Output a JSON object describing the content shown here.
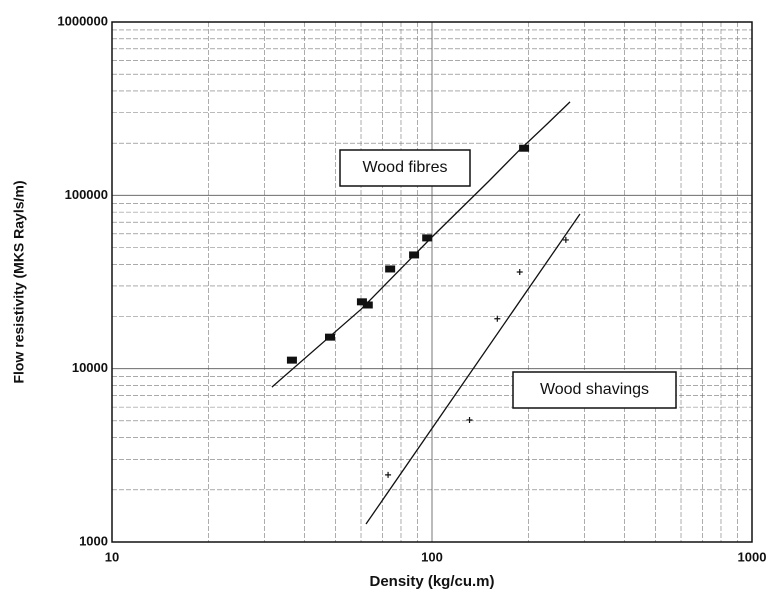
{
  "chart_data": {
    "type": "scatter",
    "xlabel": "Density (kg/cu.m)",
    "ylabel": "Flow resistivity (MKS Rayls/m)",
    "xscale": "log",
    "yscale": "log",
    "xlim": [
      10,
      1000
    ],
    "ylim": [
      1000,
      1000000
    ],
    "xticks": [
      10,
      100,
      1000
    ],
    "yticks": [
      1000,
      10000,
      100000,
      1000000
    ],
    "grid": true,
    "minor_grid": true,
    "series": [
      {
        "name": "Wood fibres",
        "marker": "square",
        "color": "#111111",
        "x": [
          36.5,
          48,
          60.4,
          63,
          74,
          87.9,
          96.6,
          194
        ],
        "values": [
          11200,
          15200,
          24300,
          23300,
          37600,
          45300,
          56800,
          187000
        ],
        "fit_x": [
          31.6,
          60,
          100,
          150,
          188,
          230,
          270
        ],
        "fit_values": [
          7830,
          22000,
          57500,
          120000,
          183000,
          260000,
          346000
        ]
      },
      {
        "name": "Wood shavings",
        "marker": "cross",
        "color": "#111111",
        "x": [
          72.9,
          131,
          160,
          188,
          262
        ],
        "values": [
          2440,
          5060,
          19400,
          36100,
          55300
        ],
        "fit_x": [
          62.2,
          290
        ],
        "fit_values": [
          1270,
          78000
        ]
      }
    ]
  }
}
